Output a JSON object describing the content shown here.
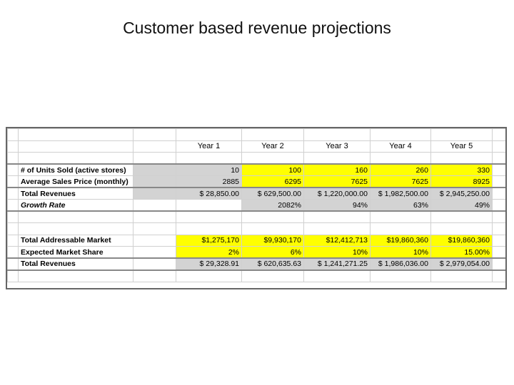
{
  "slide": {
    "title": "Customer based revenue projections"
  },
  "table": {
    "years": [
      "Year 1",
      "Year 2",
      "Year 3",
      "Year 4",
      "Year 5"
    ],
    "rows1": [
      {
        "label": "# of Units Sold (active stores)",
        "values": [
          "10",
          "100",
          "160",
          "260",
          "330"
        ]
      },
      {
        "label": "Average Sales Price (monthly)",
        "values": [
          "2885",
          "6295",
          "7625",
          "7625",
          "8925"
        ]
      },
      {
        "label": "Total Revenues",
        "values": [
          "$ 28,850.00",
          "$ 629,500.00",
          "$ 1,220,000.00",
          "$ 1,982,500.00",
          "$ 2,945,250.00"
        ]
      },
      {
        "label": "Growth Rate",
        "values": [
          "",
          "2082%",
          "94%",
          "63%",
          "49%"
        ]
      }
    ],
    "rows2": [
      {
        "label": "Total Addressable Market",
        "values": [
          "$1,275,170",
          "$9,930,170",
          "$12,412,713",
          "$19,860,360",
          "$19,860,360"
        ]
      },
      {
        "label": "Expected Market Share",
        "values": [
          "2%",
          "6%",
          "10%",
          "10%",
          "15.00%"
        ]
      },
      {
        "label": "Total Revenues",
        "values": [
          "$ 29,328.91",
          "$ 620,635.63",
          "$ 1,241,271.25",
          "$ 1,986,036.00",
          "$ 2,979,054.00"
        ]
      }
    ]
  },
  "colors": {
    "highlight_yellow": "#ffff00",
    "cell_gray": "#d3d3d3",
    "border": "#666666"
  }
}
